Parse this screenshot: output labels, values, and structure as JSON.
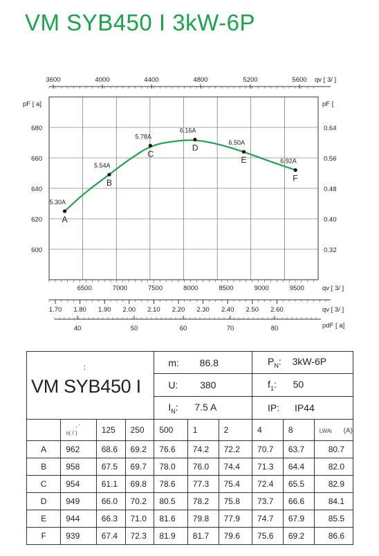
{
  "title": "VM SYB450 I 3kW-6P",
  "chart_data": {
    "type": "line",
    "y_left": {
      "ticks": [
        600,
        620,
        640,
        660,
        680
      ],
      "ylim": [
        580,
        700
      ],
      "label": "pF [ a]"
    },
    "y_right": {
      "ticks": [
        "0.32",
        "0.40",
        "0.48",
        "0.56",
        "0.64"
      ],
      "label": "pF ["
    },
    "x_top": {
      "ticks": [
        "3600",
        "4000",
        "4400",
        "4800",
        "5200",
        "5600"
      ],
      "label": "qv [ 3/ ]"
    },
    "x_bottom_1": {
      "ticks": [
        "6500",
        "7000",
        "7500",
        "8000",
        "8500",
        "9000",
        "9500"
      ],
      "label": "qv [ 3/ ]",
      "xlim": [
        6000,
        9800
      ]
    },
    "x_bottom_2": {
      "ticks": [
        "1.70",
        "1.80",
        "1.90",
        "2.00",
        "2.10",
        "2.20",
        "2.30",
        "2.40",
        "2.50",
        "2.60"
      ],
      "label": "qv [ 3/ ]"
    },
    "x_bottom_3": {
      "ticks": [
        "40",
        "50",
        "60",
        "70",
        "80"
      ],
      "label": "pdF [ a]"
    },
    "points": [
      {
        "name": "A",
        "current": "5.30A",
        "x": 6220,
        "y": 625
      },
      {
        "name": "B",
        "current": "5.54A",
        "x": 6850,
        "y": 649
      },
      {
        "name": "C",
        "current": "5.78A",
        "x": 7430,
        "y": 668
      },
      {
        "name": "D",
        "current": "6.16A",
        "x": 8060,
        "y": 672
      },
      {
        "name": "E",
        "current": "6.50A",
        "x": 8750,
        "y": 664
      },
      {
        "name": "F",
        "current": "6.92A",
        "x": 9480,
        "y": 652
      }
    ],
    "curve": [
      [
        6220,
        625
      ],
      [
        6500,
        637
      ],
      [
        6850,
        649
      ],
      [
        7100,
        658
      ],
      [
        7430,
        668
      ],
      [
        7750,
        671
      ],
      [
        8060,
        672
      ],
      [
        8400,
        669
      ],
      [
        8750,
        664
      ],
      [
        9100,
        658
      ],
      [
        9480,
        652
      ]
    ],
    "curve_color": "#1aa34a",
    "grid": true
  },
  "specs": {
    "model": "VM SYB450 I",
    "dot": ":",
    "m_label": "m:",
    "m_value": "86.8",
    "u_label": "U:",
    "u_value": "380",
    "in_label": "I",
    "in_sub": "N",
    "in_colon": ":",
    "in_value": "7.5  A",
    "pn_label": "P",
    "pn_sub": "N",
    "pn_colon": ":",
    "pn_value": "3kW-6P",
    "f1_label": "f",
    "f1_sub": "1",
    "f1_colon": ":",
    "f1_value": "50",
    "ip_label": "IP:",
    "ip_value": "IP44"
  },
  "noise_table": {
    "header": {
      "n": "n(  /  )",
      "dash": "-  '",
      "bands": [
        "125",
        "250",
        "500",
        "1",
        "2",
        "4",
        "8"
      ],
      "lwa": "LWAi",
      "lwa_unit": "(A)"
    },
    "rows": [
      {
        "point": "A",
        "n": "962",
        "vals": [
          "68.6",
          "69.2",
          "76.6",
          "74.2",
          "72.2",
          "70.7",
          "63.7"
        ],
        "lwa": "80.7"
      },
      {
        "point": "B",
        "n": "958",
        "vals": [
          "67.5",
          "69.7",
          "78.0",
          "76.0",
          "74.4",
          "71.3",
          "64.4"
        ],
        "lwa": "82.0"
      },
      {
        "point": "C",
        "n": "954",
        "vals": [
          "61.1",
          "69.8",
          "78.6",
          "77.3",
          "75.4",
          "72.4",
          "65.5"
        ],
        "lwa": "82.9"
      },
      {
        "point": "D",
        "n": "949",
        "vals": [
          "66.0",
          "70.2",
          "80.5",
          "78.2",
          "75.8",
          "73.7",
          "66.6"
        ],
        "lwa": "84.1"
      },
      {
        "point": "E",
        "n": "944",
        "vals": [
          "66.3",
          "71.0",
          "81.6",
          "79.8",
          "77.9",
          "74.7",
          "67.9"
        ],
        "lwa": "85.5"
      },
      {
        "point": "F",
        "n": "939",
        "vals": [
          "67.4",
          "72.3",
          "81.9",
          "81.7",
          "79.6",
          "75.6",
          "69.2"
        ],
        "lwa": "86.6"
      }
    ]
  }
}
